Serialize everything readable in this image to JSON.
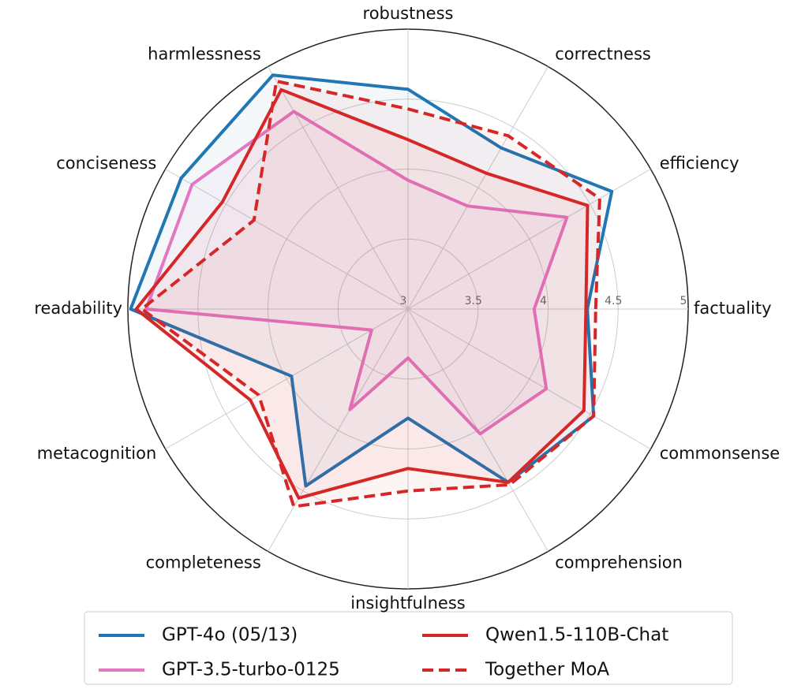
{
  "chart_data": {
    "type": "radar",
    "categories": [
      "factuality",
      "efficiency",
      "correctness",
      "robustness",
      "harmlessness",
      "conciseness",
      "readability",
      "metacognition",
      "completeness",
      "insightfulness",
      "comprehension",
      "commonsense"
    ],
    "ylim": [
      3,
      5
    ],
    "yticks": [
      3,
      3.5,
      4,
      4.5,
      5
    ],
    "grid": true,
    "series": [
      {
        "name": "GPT-4o (05/13)",
        "color": "#1f77b4",
        "linestyle": "solid",
        "values": [
          4.28,
          4.68,
          4.33,
          4.57,
          4.93,
          4.87,
          4.98,
          3.96,
          4.46,
          3.78,
          4.43,
          4.53
        ]
      },
      {
        "name": "GPT-3.5-turbo-0125",
        "color": "#e377c2",
        "linestyle": "solid",
        "values": [
          3.9,
          4.31,
          3.85,
          3.92,
          4.63,
          4.78,
          4.87,
          3.3,
          3.83,
          3.35,
          4.03,
          4.14
        ]
      },
      {
        "name": "Qwen1.5-110B-Chat",
        "color": "#d62728",
        "linestyle": "solid",
        "values": [
          4.27,
          4.48,
          4.12,
          4.21,
          4.81,
          4.53,
          4.94,
          4.3,
          4.56,
          4.14,
          4.43,
          4.45
        ]
      },
      {
        "name": "Together MoA",
        "color": "#d62728",
        "linestyle": "dashed",
        "values": [
          4.34,
          4.58,
          4.43,
          4.43,
          4.88,
          4.27,
          4.9,
          4.23,
          4.63,
          4.3,
          4.45,
          4.53
        ]
      }
    ],
    "legend": "lower center"
  }
}
